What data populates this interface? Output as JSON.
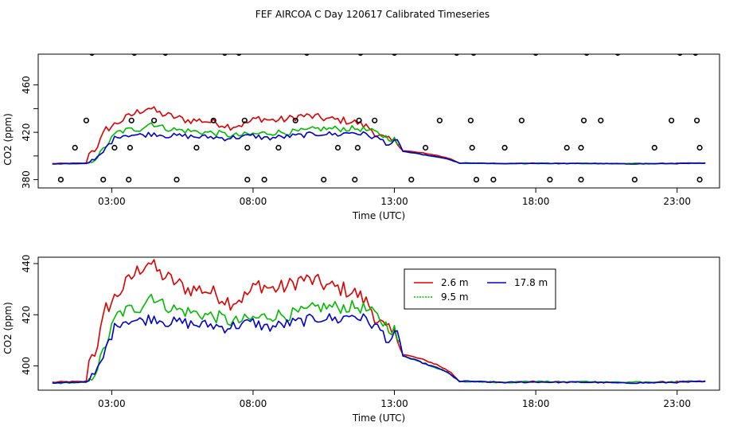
{
  "title": "FEF AIRCOA C  Day 120617  Calibrated Timeseries",
  "chart_data": [
    {
      "type": "line",
      "panel": "top",
      "xlabel": "Time (UTC)",
      "ylabel": "CO2 (ppm)",
      "x_ticks": [
        3,
        8,
        13,
        18,
        23
      ],
      "x_tick_labels": [
        "03:00",
        "08:00",
        "13:00",
        "18:00",
        "23:00"
      ],
      "y_ticks": [
        380,
        400,
        420,
        440,
        460
      ],
      "y_tick_labels": [
        "380",
        "",
        "420",
        "",
        "460"
      ],
      "xlim": [
        0.4,
        24.5
      ],
      "ylim": [
        373,
        486
      ],
      "colors": {
        "2.6 m": "#dd0000",
        "9.5 m": "#00bb00",
        "17.8 m": "#0000cc",
        "points": "#000000"
      },
      "series_names": [
        "2.6 m",
        "9.5 m",
        "17.8 m"
      ],
      "calibration_points": [
        [
          1.2,
          380
        ],
        [
          1.7,
          407
        ],
        [
          2.1,
          430
        ],
        [
          2.7,
          380
        ],
        [
          2.3,
          487
        ],
        [
          3.1,
          407
        ],
        [
          3.6,
          380
        ],
        [
          3.65,
          407
        ],
        [
          3.7,
          430
        ],
        [
          3.8,
          487
        ],
        [
          4.5,
          430
        ],
        [
          4.9,
          487
        ],
        [
          5.3,
          380
        ],
        [
          6.0,
          407
        ],
        [
          6.6,
          430
        ],
        [
          7.0,
          487
        ],
        [
          7.5,
          487
        ],
        [
          7.7,
          430
        ],
        [
          7.8,
          380
        ],
        [
          7.8,
          407
        ],
        [
          8.4,
          380
        ],
        [
          8.9,
          407
        ],
        [
          9.5,
          430
        ],
        [
          9.9,
          487
        ],
        [
          10.5,
          380
        ],
        [
          11.0,
          407
        ],
        [
          11.6,
          380
        ],
        [
          11.7,
          407
        ],
        [
          11.75,
          430
        ],
        [
          11.8,
          487
        ],
        [
          12.3,
          430
        ],
        [
          13.0,
          487
        ],
        [
          13.6,
          380
        ],
        [
          14.1,
          407
        ],
        [
          14.6,
          430
        ],
        [
          15.2,
          487
        ],
        [
          15.7,
          430
        ],
        [
          15.75,
          407
        ],
        [
          15.8,
          487
        ],
        [
          15.9,
          380
        ],
        [
          16.5,
          380
        ],
        [
          16.9,
          407
        ],
        [
          17.5,
          430
        ],
        [
          18.0,
          487
        ],
        [
          18.5,
          380
        ],
        [
          19.1,
          407
        ],
        [
          19.6,
          380
        ],
        [
          19.6,
          407
        ],
        [
          19.7,
          430
        ],
        [
          19.8,
          487
        ],
        [
          20.3,
          430
        ],
        [
          20.9,
          487
        ],
        [
          21.5,
          380
        ],
        [
          22.2,
          407
        ],
        [
          22.8,
          430
        ],
        [
          23.1,
          487
        ],
        [
          23.7,
          430
        ],
        [
          23.65,
          487
        ],
        [
          23.8,
          407
        ],
        [
          23.8,
          380
        ]
      ]
    },
    {
      "type": "line",
      "panel": "bottom",
      "xlabel": "Time (UTC)",
      "ylabel": "CO2 (ppm)",
      "x_ticks": [
        3,
        8,
        13,
        18,
        23
      ],
      "x_tick_labels": [
        "03:00",
        "08:00",
        "13:00",
        "18:00",
        "23:00"
      ],
      "y_ticks": [
        400,
        420,
        440
      ],
      "y_tick_labels": [
        "400",
        "420",
        "440"
      ],
      "xlim": [
        0.4,
        24.5
      ],
      "ylim": [
        390.5,
        442.5
      ],
      "legend": {
        "position": "top-center",
        "entries": [
          "2.6 m",
          "9.5 m",
          "17.8 m"
        ]
      },
      "colors": {
        "2.6 m": "#dd0000",
        "9.5 m": "#00bb00",
        "17.8 m": "#0000cc"
      },
      "series": [
        {
          "name": "2.6 m",
          "color": "#dd0000",
          "keypoints": [
            [
              0.9,
              393.6
            ],
            [
              1.5,
              393.8
            ],
            [
              1.9,
              393.8
            ],
            [
              2.1,
              394
            ],
            [
              2.15,
              401.5
            ],
            [
              2.4,
              405.5
            ],
            [
              2.6,
              413
            ],
            [
              2.8,
              422.5
            ],
            [
              3.0,
              425
            ],
            [
              3.2,
              428
            ],
            [
              3.5,
              432
            ],
            [
              3.9,
              437
            ],
            [
              4.3,
              441
            ],
            [
              4.7,
              436
            ],
            [
              5.2,
              433
            ],
            [
              5.7,
              430
            ],
            [
              6.2,
              430
            ],
            [
              6.7,
              428
            ],
            [
              7.2,
              425
            ],
            [
              7.7,
              427
            ],
            [
              8.2,
              432
            ],
            [
              8.7,
              430
            ],
            [
              9.2,
              431
            ],
            [
              9.7,
              434
            ],
            [
              10.2,
              433
            ],
            [
              10.7,
              431
            ],
            [
              11.2,
              430
            ],
            [
              11.7,
              428
            ],
            [
              12.1,
              424
            ],
            [
              12.4,
              418
            ],
            [
              12.7,
              414
            ],
            [
              13.0,
              412
            ],
            [
              13.2,
              410
            ],
            [
              13.3,
              404.5
            ],
            [
              13.5,
              404
            ],
            [
              14.0,
              402.5
            ],
            [
              14.5,
              400.5
            ],
            [
              15.0,
              397.5
            ],
            [
              15.3,
              394
            ],
            [
              16.0,
              393.8
            ],
            [
              17.0,
              393.6
            ],
            [
              18.0,
              393.9
            ],
            [
              19.0,
              393.7
            ],
            [
              20.0,
              393.8
            ],
            [
              21.0,
              393.5
            ],
            [
              22.0,
              393.6
            ],
            [
              23.0,
              393.8
            ],
            [
              24.0,
              394
            ]
          ]
        },
        {
          "name": "9.5 m",
          "color": "#00bb00",
          "keypoints": [
            [
              0.9,
              393.2
            ],
            [
              1.5,
              393.4
            ],
            [
              2.1,
              393.5
            ],
            [
              2.3,
              396
            ],
            [
              2.6,
              402
            ],
            [
              2.9,
              412
            ],
            [
              3.2,
              420
            ],
            [
              3.6,
              422
            ],
            [
              4.0,
              423
            ],
            [
              4.4,
              428
            ],
            [
              4.8,
              424
            ],
            [
              5.3,
              422
            ],
            [
              5.8,
              421
            ],
            [
              6.3,
              420
            ],
            [
              6.8,
              419
            ],
            [
              7.3,
              417
            ],
            [
              7.8,
              418
            ],
            [
              8.3,
              419
            ],
            [
              8.8,
              420
            ],
            [
              9.3,
              420
            ],
            [
              9.8,
              421
            ],
            [
              10.3,
              423
            ],
            [
              10.8,
              423
            ],
            [
              11.3,
              423
            ],
            [
              11.8,
              423
            ],
            [
              12.3,
              420
            ],
            [
              12.7,
              416
            ],
            [
              13.0,
              414
            ],
            [
              13.3,
              404
            ],
            [
              13.8,
              402
            ],
            [
              14.3,
              400
            ],
            [
              14.8,
              398
            ],
            [
              15.3,
              394
            ],
            [
              16.0,
              393.8
            ],
            [
              17.0,
              393.6
            ],
            [
              18.0,
              393.9
            ],
            [
              19.0,
              393.7
            ],
            [
              20.0,
              393.8
            ],
            [
              21.0,
              393.5
            ],
            [
              22.0,
              393.6
            ],
            [
              23.0,
              393.8
            ],
            [
              24.0,
              394
            ]
          ]
        },
        {
          "name": "17.8 m",
          "color": "#0000cc",
          "keypoints": [
            [
              0.9,
              393.2
            ],
            [
              1.5,
              393.5
            ],
            [
              2.1,
              393.8
            ],
            [
              2.3,
              395
            ],
            [
              2.6,
              400
            ],
            [
              2.9,
              410
            ],
            [
              3.2,
              417
            ],
            [
              3.6,
              418
            ],
            [
              4.0,
              417.5
            ],
            [
              4.5,
              419
            ],
            [
              5.0,
              417
            ],
            [
              5.5,
              417
            ],
            [
              6.0,
              416
            ],
            [
              6.5,
              416
            ],
            [
              7.0,
              415
            ],
            [
              7.5,
              416
            ],
            [
              8.0,
              417
            ],
            [
              8.5,
              415
            ],
            [
              9.0,
              416
            ],
            [
              9.5,
              417
            ],
            [
              10.0,
              418
            ],
            [
              10.5,
              419
            ],
            [
              11.0,
              418
            ],
            [
              11.5,
              420
            ],
            [
              12.0,
              418
            ],
            [
              12.5,
              414
            ],
            [
              12.8,
              410
            ],
            [
              13.1,
              412
            ],
            [
              13.3,
              404
            ],
            [
              13.8,
              402
            ],
            [
              14.3,
              400
            ],
            [
              14.8,
              398
            ],
            [
              15.3,
              394
            ],
            [
              16.0,
              393.8
            ],
            [
              17.0,
              393.5
            ],
            [
              18.0,
              393.7
            ],
            [
              19.0,
              393.6
            ],
            [
              20.0,
              393.6
            ],
            [
              21.0,
              393.3
            ],
            [
              22.0,
              393.4
            ],
            [
              23.0,
              393.6
            ],
            [
              24.0,
              393.8
            ]
          ]
        }
      ]
    }
  ]
}
